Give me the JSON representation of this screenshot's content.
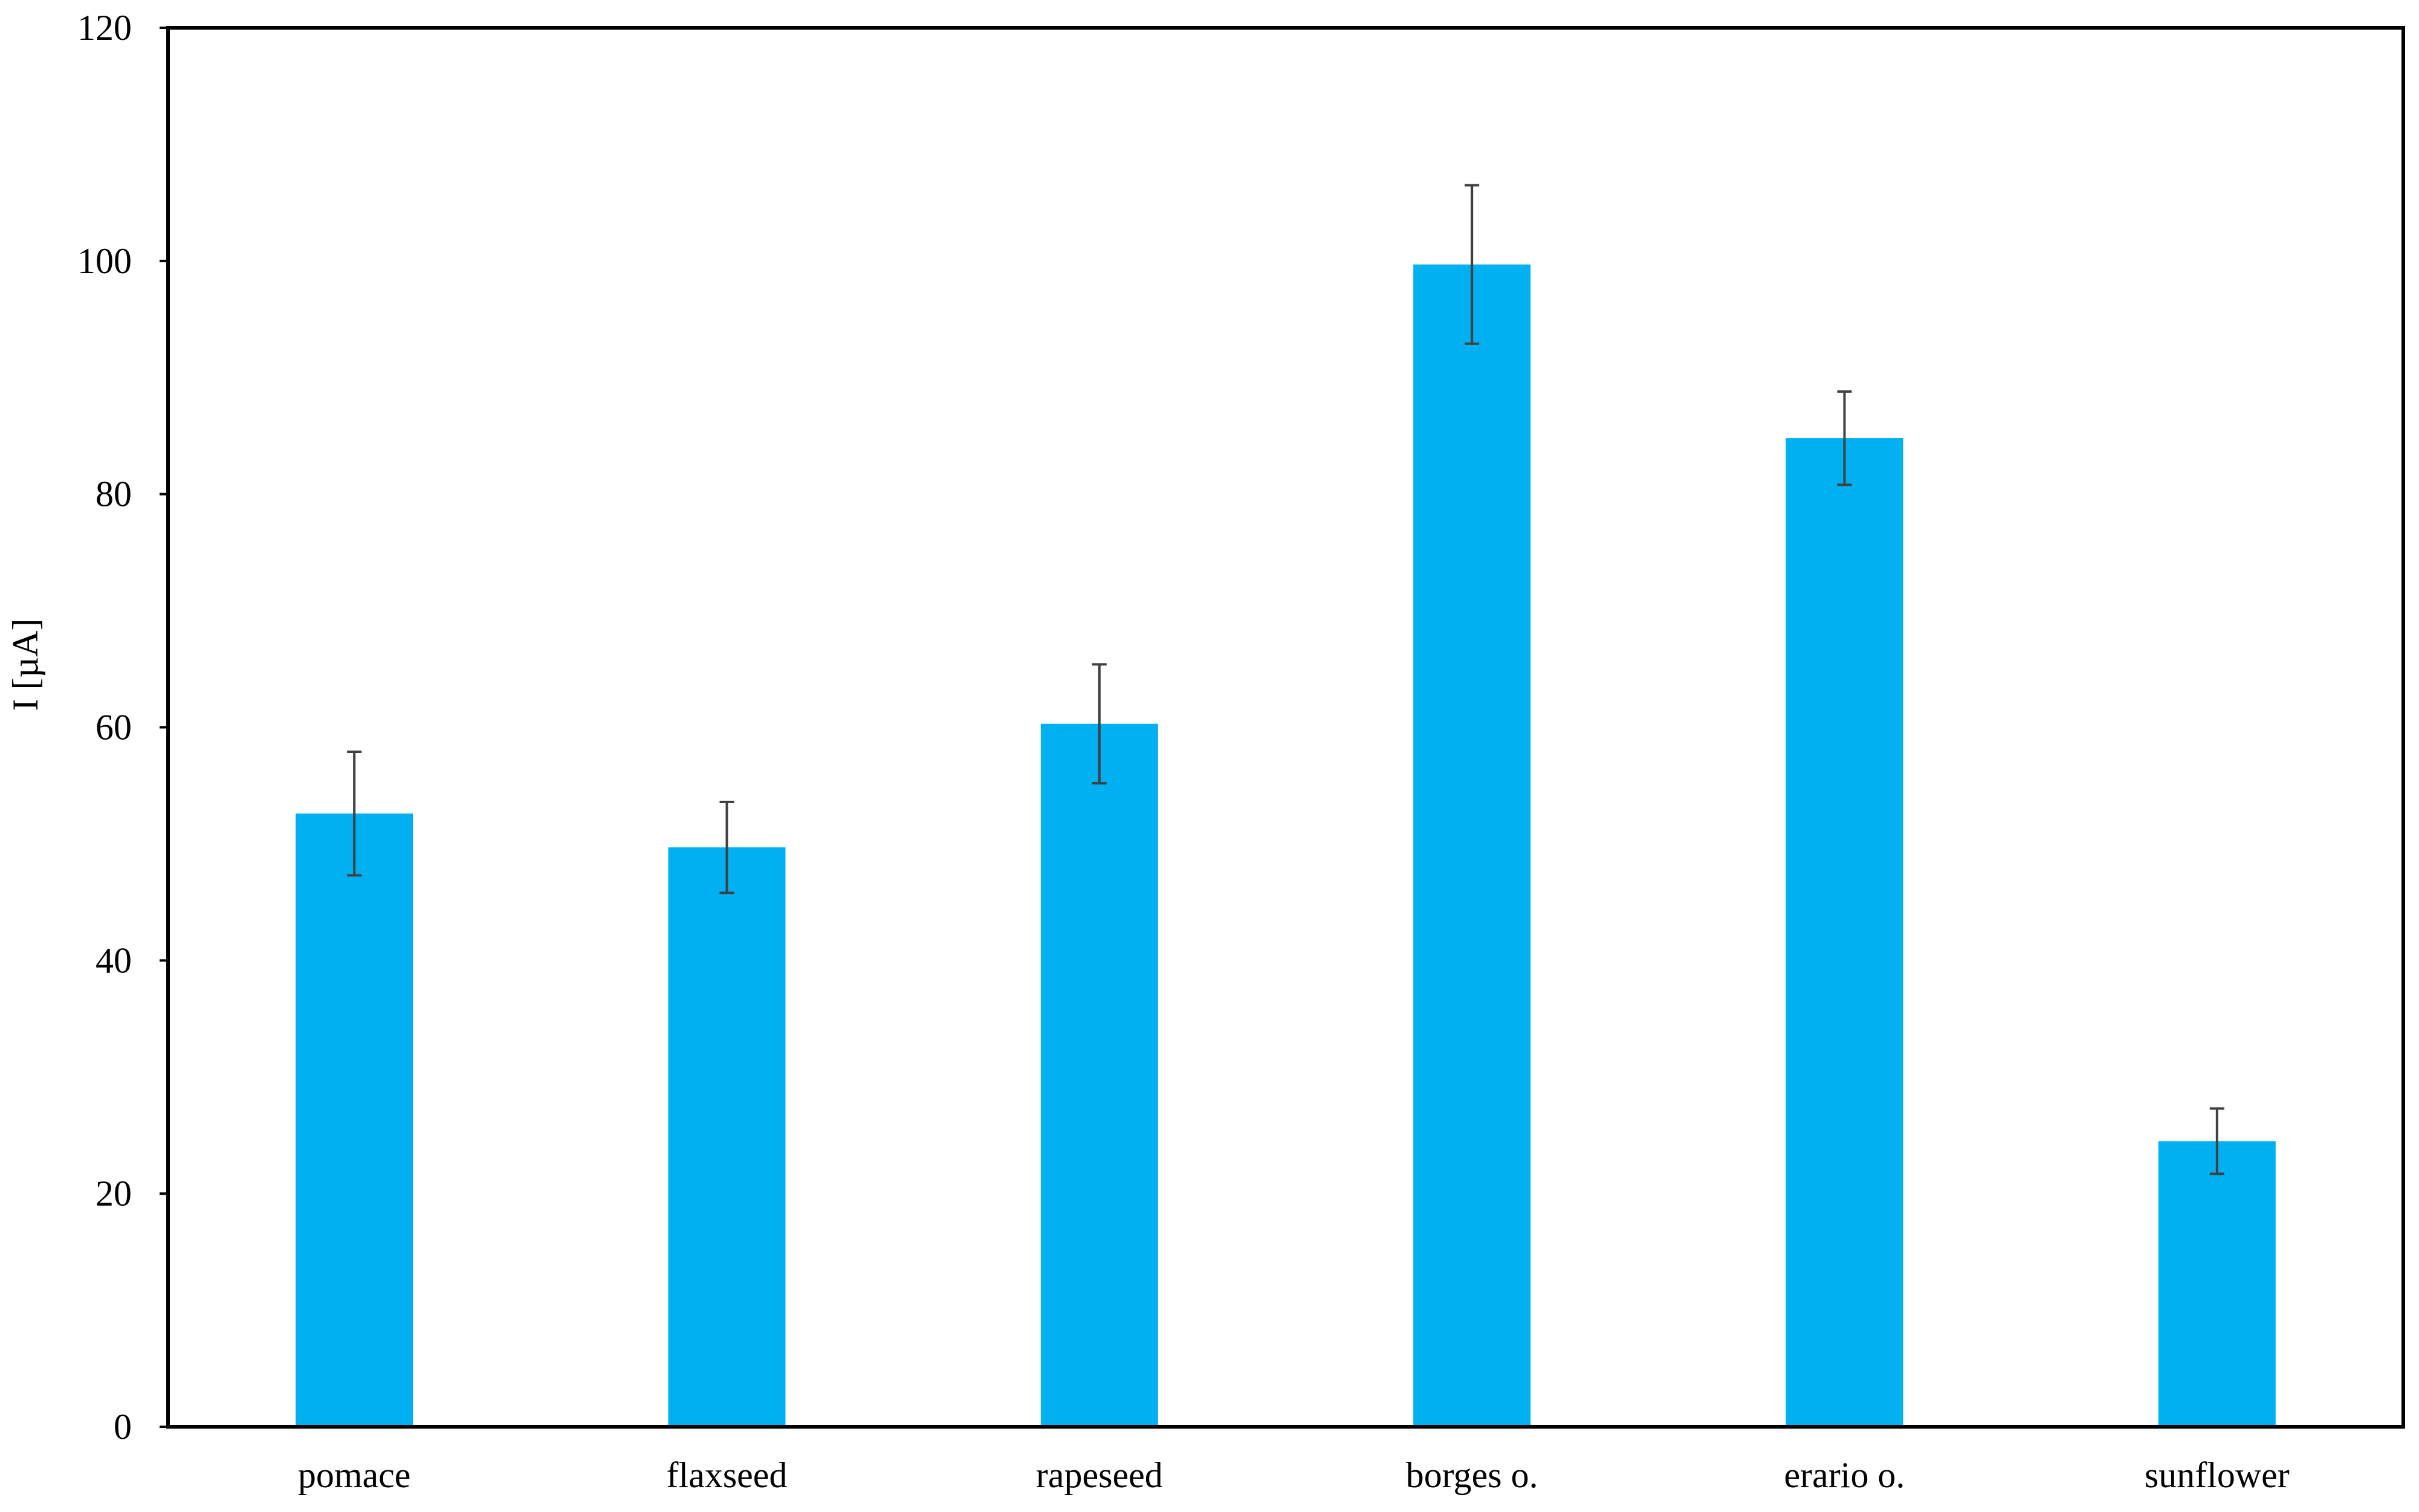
{
  "chart_data": {
    "type": "bar",
    "title": "",
    "xlabel": "",
    "ylabel": "I [µA]",
    "ylim": [
      0,
      120
    ],
    "yticks": [
      0,
      20,
      40,
      60,
      80,
      100,
      120
    ],
    "grid": false,
    "legend": "none",
    "bar_color": "#00B0F0",
    "errorbar_color": "#404040",
    "categories": [
      "pomace",
      "flaxseed",
      "rapeseed",
      "borges o.",
      "erario o.",
      "sunflower"
    ],
    "values": [
      52.6,
      49.7,
      60.3,
      99.7,
      84.8,
      24.5
    ],
    "errors": [
      5.3,
      3.9,
      5.1,
      6.8,
      4.0,
      2.8
    ]
  }
}
